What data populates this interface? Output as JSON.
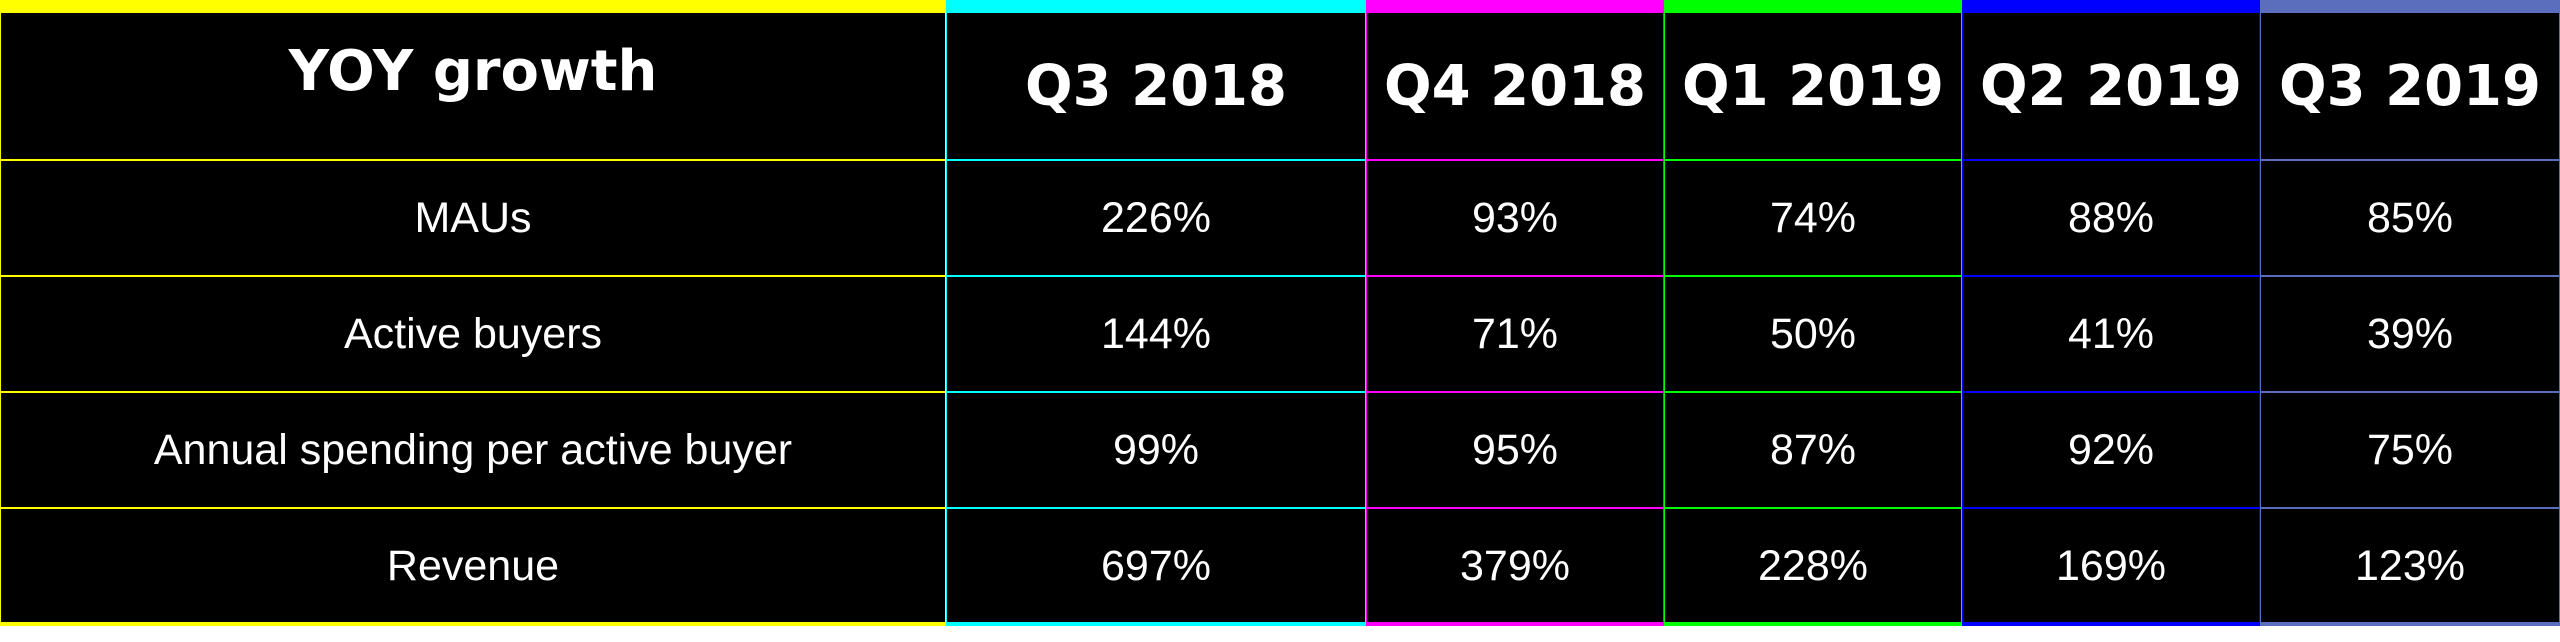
{
  "chart_data": {
    "type": "table",
    "title": "",
    "columns": [
      "YOY growth",
      "Q3 2018",
      "Q4 2018",
      "Q1 2019",
      "Q2 2019",
      "Q3 2019"
    ],
    "rows": [
      {
        "label": "MAUs",
        "values": [
          "226%",
          "93%",
          "74%",
          "88%",
          "85%"
        ]
      },
      {
        "label": "Active buyers",
        "values": [
          "144%",
          "71%",
          "50%",
          "41%",
          "39%"
        ]
      },
      {
        "label": "Annual spending per active buyer",
        "values": [
          "99%",
          "95%",
          "87%",
          "92%",
          "75%"
        ]
      },
      {
        "label": "Revenue",
        "values": [
          "697%",
          "379%",
          "228%",
          "169%",
          "123%"
        ]
      }
    ],
    "column_colors": [
      "#ffff00",
      "#00ffff",
      "#ff00ff",
      "#00ff00",
      "#0000ff",
      "#5b6dbd"
    ],
    "background": "#000000",
    "text_color": "#ffffff"
  }
}
